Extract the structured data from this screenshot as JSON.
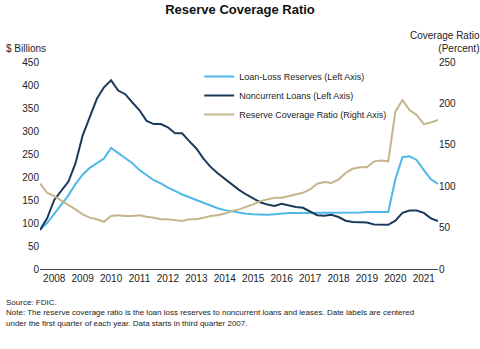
{
  "chart_data": {
    "type": "line",
    "title": "Reserve Coverage Ratio",
    "ylabel": "$ Billions",
    "y2label": "Coverage Ratio\n(Percent)",
    "categories": [
      null,
      null,
      "2008",
      null,
      null,
      null,
      "2009",
      null,
      null,
      null,
      "2010",
      null,
      null,
      null,
      "2011",
      null,
      null,
      null,
      "2012",
      null,
      null,
      null,
      "2013",
      null,
      null,
      null,
      "2014",
      null,
      null,
      null,
      "2015",
      null,
      null,
      null,
      "2016",
      null,
      null,
      null,
      "2017",
      null,
      null,
      null,
      "2018",
      null,
      null,
      null,
      "2019",
      null,
      null,
      null,
      "2020",
      null,
      null,
      null,
      "2021",
      null,
      null
    ],
    "series": [
      {
        "name": "Loan-Loss Reserves (Left Axis)",
        "color": "#4db8e8",
        "axis": "y",
        "values": [
          85,
          100,
          120,
          140,
          160,
          185,
          205,
          220,
          230,
          240,
          263,
          252,
          242,
          230,
          215,
          203,
          193,
          186,
          177,
          170,
          162,
          156,
          150,
          143,
          137,
          132,
          128,
          125,
          122,
          120,
          119,
          118,
          118,
          119,
          121,
          122,
          122,
          122,
          122,
          122,
          122,
          122,
          123,
          123,
          123,
          123,
          124,
          124,
          124,
          124,
          195,
          243,
          245,
          237,
          215,
          195,
          185
        ]
      },
      {
        "name": "Noncurrent Loans (Left Axis)",
        "color": "#1b3a5a",
        "axis": "y",
        "values": [
          85,
          110,
          150,
          170,
          190,
          230,
          290,
          330,
          370,
          395,
          410,
          388,
          380,
          362,
          345,
          322,
          315,
          315,
          308,
          295,
          295,
          278,
          262,
          240,
          222,
          208,
          196,
          182,
          172,
          162,
          153,
          145,
          140,
          137,
          142,
          138,
          135,
          133,
          125,
          117,
          116,
          118,
          113,
          105,
          102,
          101,
          101,
          97,
          96,
          96,
          105,
          122,
          127,
          127,
          122,
          110,
          104
        ]
      },
      {
        "name": "Reserve Coverage Ratio (Right Axis)",
        "color": "#c4b58c",
        "axis": "y2",
        "values": [
          103,
          92,
          88,
          83,
          78,
          72,
          66,
          62,
          60,
          57,
          64,
          65,
          64,
          64,
          65,
          63,
          62,
          60,
          60,
          59,
          58,
          60,
          60,
          62,
          64,
          65,
          67,
          70,
          72,
          75,
          78,
          82,
          84,
          86,
          86,
          88,
          90,
          92,
          96,
          103,
          105,
          104,
          108,
          116,
          121,
          123,
          123,
          130,
          131,
          130,
          190,
          204,
          192,
          186,
          175,
          177,
          180
        ]
      }
    ],
    "ylim": [
      0,
      450
    ],
    "yticks": [
      0,
      50,
      100,
      150,
      200,
      250,
      300,
      350,
      400,
      450
    ],
    "y2lim": [
      0,
      250
    ],
    "y2ticks": [
      0,
      50,
      100,
      150,
      200,
      250
    ],
    "grid": false,
    "legend": "top",
    "annotations": [
      "Source: FDIC.",
      "Note: The reserve coverage ratio is the loan loss reserves to noncurrent loans and leases. Date labels are centered",
      "under the first quarter of each year. Data starts in third quarter 2007."
    ]
  }
}
